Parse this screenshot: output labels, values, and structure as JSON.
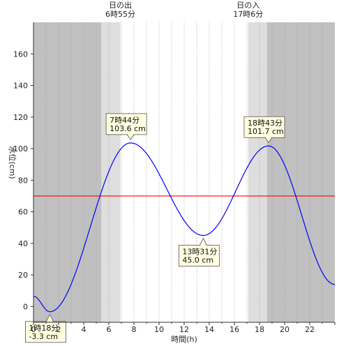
{
  "chart_data": {
    "type": "line",
    "xlabel": "時間(h)",
    "ylabel": "水位(cm)",
    "xlim": [
      0,
      24
    ],
    "ylim": [
      -10,
      180
    ],
    "x_ticks": [
      0,
      2,
      4,
      6,
      8,
      10,
      12,
      14,
      16,
      18,
      20,
      22
    ],
    "y_ticks": [
      0,
      20,
      40,
      60,
      80,
      100,
      120,
      140,
      160
    ],
    "grid": "vertical dotted every hour",
    "reference_line": {
      "y": 70,
      "color": "#ff0000"
    },
    "colors": {
      "line": "#0000ff",
      "night": "#c0c0c0",
      "twilight": "#dedede",
      "day": "#ffffff",
      "callout_fill": "#ffffe0"
    },
    "sun": {
      "sunrise_label": "日の出",
      "sunrise_time": "6時55分",
      "sunrise_hour": 6.92,
      "sunset_label": "日の入",
      "sunset_time": "17時6分",
      "sunset_hour": 17.1,
      "twilight_start_hour": 5.4,
      "twilight_end_hour": 18.6
    },
    "extrema": [
      {
        "x": 1.3,
        "y": -3.3,
        "time": "1時18分",
        "value": "-3.3 cm",
        "side": "below"
      },
      {
        "x": 7.73,
        "y": 103.6,
        "time": "7時44分",
        "value": "103.6 cm",
        "side": "above"
      },
      {
        "x": 13.52,
        "y": 45.0,
        "time": "13時31分",
        "value": "45.0 cm",
        "side": "below"
      },
      {
        "x": 18.72,
        "y": 101.7,
        "time": "18時43分",
        "value": "101.7 cm",
        "side": "above"
      }
    ],
    "series": [
      {
        "x": [
          0,
          1.3,
          7.73,
          13.52,
          18.72,
          24
        ],
        "y": [
          6.5,
          -3.3,
          103.6,
          45.0,
          101.7,
          14
        ]
      }
    ]
  }
}
